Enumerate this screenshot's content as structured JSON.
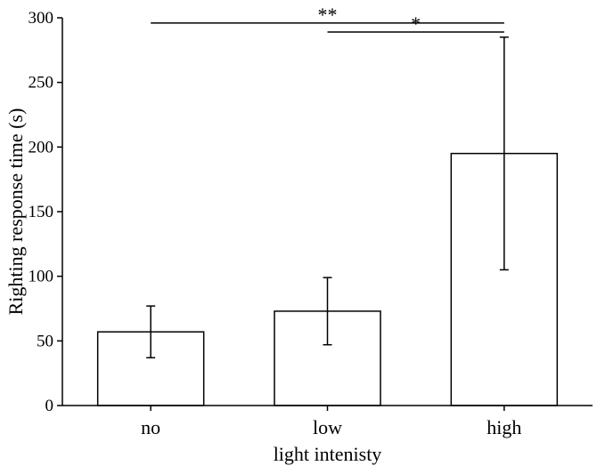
{
  "chart_data": {
    "type": "bar",
    "xlabel": "light intenisty",
    "ylabel": "Righting response time (s)",
    "categories": [
      "no",
      "low",
      "high"
    ],
    "values": [
      57,
      73,
      195
    ],
    "error": [
      20,
      26,
      90
    ],
    "ylim": [
      0,
      300
    ],
    "yticks": [
      0,
      50,
      100,
      150,
      200,
      250,
      300
    ],
    "grid": false,
    "significance": [
      {
        "from": "no",
        "to": "high",
        "label": "**",
        "y": 296
      },
      {
        "from": "low",
        "to": "high",
        "label": "*",
        "y": 289
      }
    ],
    "colors": {
      "bar_fill": "#ffffff",
      "stroke": "#000000"
    }
  }
}
